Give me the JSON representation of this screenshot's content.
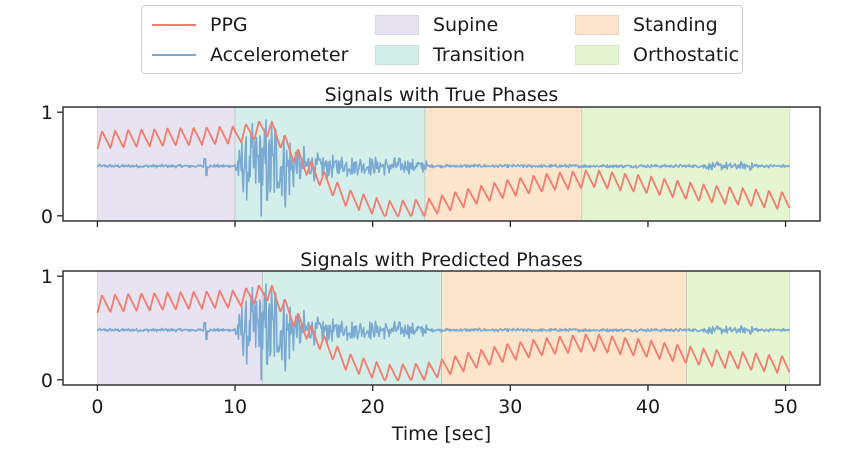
{
  "chart_data": {
    "type": "line",
    "xlabel": "Time [sec]",
    "x_ticks": [
      0,
      10,
      20,
      30,
      40,
      50
    ],
    "y_ticks": [
      0,
      1
    ],
    "xlim": [
      -2.5,
      52.5
    ],
    "ylim": [
      -0.05,
      1.05
    ],
    "legend": {
      "placement": "top-center",
      "entries": [
        {
          "label": "PPG",
          "kind": "line",
          "color": "#f47c6e"
        },
        {
          "label": "Supine",
          "kind": "patch",
          "color": "#e7e3f1"
        },
        {
          "label": "Standing",
          "kind": "patch",
          "color": "#fde5cc"
        },
        {
          "label": "Accelerometer",
          "kind": "line",
          "color": "#7aa9d2"
        },
        {
          "label": "Transition",
          "kind": "patch",
          "color": "#d4efe9"
        },
        {
          "label": "Orthostatic",
          "kind": "patch",
          "color": "#e5f5d2"
        }
      ]
    },
    "series": [
      {
        "name": "PPG",
        "color": "#f47c6e",
        "baseline_x": [
          0,
          3,
          10,
          12.5,
          15,
          18,
          21,
          24,
          27,
          30,
          33,
          36,
          40,
          44,
          48,
          50.3
        ],
        "baseline_y": [
          0.73,
          0.75,
          0.78,
          0.85,
          0.5,
          0.18,
          0.06,
          0.08,
          0.18,
          0.27,
          0.33,
          0.36,
          0.3,
          0.22,
          0.17,
          0.14
        ],
        "oscillation_period_sec": 0.95
      },
      {
        "name": "Accelerometer",
        "color": "#7aa9d2",
        "rest_level": 0.48,
        "active_interval": [
          10,
          24
        ]
      }
    ],
    "panels": [
      {
        "title": "Signals with True Phases",
        "phases": [
          {
            "label": "Supine",
            "start": 0,
            "end": 10
          },
          {
            "label": "Transition",
            "start": 10,
            "end": 23.8
          },
          {
            "label": "Standing",
            "start": 23.8,
            "end": 35.2
          },
          {
            "label": "Orthostatic",
            "start": 35.2,
            "end": 50.3
          }
        ]
      },
      {
        "title": "Signals with Predicted Phases",
        "phases": [
          {
            "label": "Supine",
            "start": 0,
            "end": 12
          },
          {
            "label": "Transition",
            "start": 12,
            "end": 25
          },
          {
            "label": "Standing",
            "start": 25,
            "end": 42.8
          },
          {
            "label": "Orthostatic",
            "start": 42.8,
            "end": 50.3
          }
        ]
      }
    ]
  }
}
